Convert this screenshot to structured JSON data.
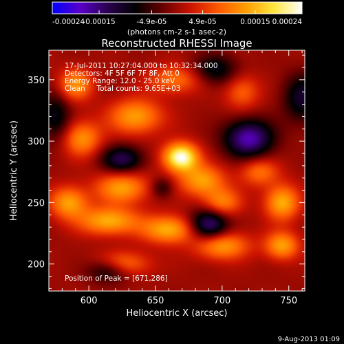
{
  "colorbar": {
    "tick_labels": [
      "-0.00024",
      "-0.00015",
      "-4.9e-05",
      "4.9e-05",
      "0.00015",
      "0.00024"
    ],
    "tick_values": [
      -0.00024,
      -0.00015,
      -4.9e-05,
      4.9e-05,
      0.00015,
      0.00024
    ],
    "range": [
      -0.00024,
      0.00024
    ],
    "units": "(photons cm-2 s-1 asec-2)",
    "palette": [
      "#0000ff",
      "#5a00c8",
      "#2a0050",
      "#000000",
      "#6a0000",
      "#cc1400",
      "#ff5a00",
      "#ffa000",
      "#ffe640",
      "#ffffff"
    ]
  },
  "chart_data": {
    "type": "heatmap",
    "title": "Reconstructed RHESSI Image",
    "xlabel": "Heliocentric X (arcsec)",
    "ylabel": "Heliocentric Y (arcsec)",
    "xlim": [
      570,
      762
    ],
    "ylim": [
      178,
      374
    ],
    "xticks": [
      600,
      650,
      700,
      750
    ],
    "yticks": [
      200,
      250,
      300,
      350
    ],
    "x_tick_labels": [
      "600",
      "650",
      "700",
      "750"
    ],
    "y_tick_labels": [
      "200",
      "250",
      "300",
      "350"
    ],
    "annotations": [
      "17-Jul-2011 10:27:04.000 to 10:32:34.000",
      "Detectors: 4F 5F 6F 7F 8F, Att 0",
      "Energy Range: 12.0 - 25.0 keV",
      "Clean     Total counts: 9.65E+03"
    ],
    "peak_label": "Position of Peak = [671,286]",
    "peak_position": [
      671,
      286
    ],
    "grid": false,
    "sources": [
      {
        "x": 669,
        "y": 287,
        "sx": 9,
        "sy": 8,
        "a": 1.0
      },
      {
        "x": 685,
        "y": 268,
        "sx": 12,
        "sy": 9,
        "a": 0.55
      },
      {
        "x": 700,
        "y": 250,
        "sx": 10,
        "sy": 8,
        "a": 0.45
      },
      {
        "x": 625,
        "y": 262,
        "sx": 14,
        "sy": 9,
        "a": 0.55
      },
      {
        "x": 595,
        "y": 302,
        "sx": 10,
        "sy": 10,
        "a": 0.5
      },
      {
        "x": 635,
        "y": 320,
        "sx": 14,
        "sy": 10,
        "a": 0.55
      },
      {
        "x": 590,
        "y": 346,
        "sx": 9,
        "sy": 9,
        "a": 0.5
      },
      {
        "x": 665,
        "y": 350,
        "sx": 14,
        "sy": 8,
        "a": 0.4
      },
      {
        "x": 585,
        "y": 250,
        "sx": 10,
        "sy": 9,
        "a": 0.55
      },
      {
        "x": 615,
        "y": 235,
        "sx": 16,
        "sy": 8,
        "a": 0.6
      },
      {
        "x": 660,
        "y": 228,
        "sx": 14,
        "sy": 8,
        "a": 0.6
      },
      {
        "x": 700,
        "y": 215,
        "sx": 14,
        "sy": 8,
        "a": 0.55
      },
      {
        "x": 745,
        "y": 250,
        "sx": 9,
        "sy": 10,
        "a": 0.6
      },
      {
        "x": 745,
        "y": 215,
        "sx": 9,
        "sy": 8,
        "a": 0.55
      },
      {
        "x": 625,
        "y": 200,
        "sx": 14,
        "sy": 7,
        "a": 0.45
      },
      {
        "x": 728,
        "y": 275,
        "sx": 10,
        "sy": 8,
        "a": 0.4
      },
      {
        "x": 715,
        "y": 340,
        "sx": 9,
        "sy": 10,
        "a": 0.35
      },
      {
        "x": 720,
        "y": 302,
        "sx": 13,
        "sy": 11,
        "a": -0.75
      },
      {
        "x": 625,
        "y": 285,
        "sx": 11,
        "sy": 8,
        "a": -0.55
      },
      {
        "x": 690,
        "y": 232,
        "sx": 10,
        "sy": 9,
        "a": -0.7
      },
      {
        "x": 615,
        "y": 195,
        "sx": 11,
        "sy": 7,
        "a": -0.45
      },
      {
        "x": 695,
        "y": 358,
        "sx": 12,
        "sy": 9,
        "a": -0.4
      },
      {
        "x": 760,
        "y": 335,
        "sx": 10,
        "sy": 14,
        "a": -0.45
      },
      {
        "x": 575,
        "y": 320,
        "sx": 8,
        "sy": 14,
        "a": -0.4
      },
      {
        "x": 655,
        "y": 262,
        "sx": 6,
        "sy": 6,
        "a": -0.3
      }
    ]
  },
  "footer": {
    "date": "9-Aug-2013 01:09"
  }
}
